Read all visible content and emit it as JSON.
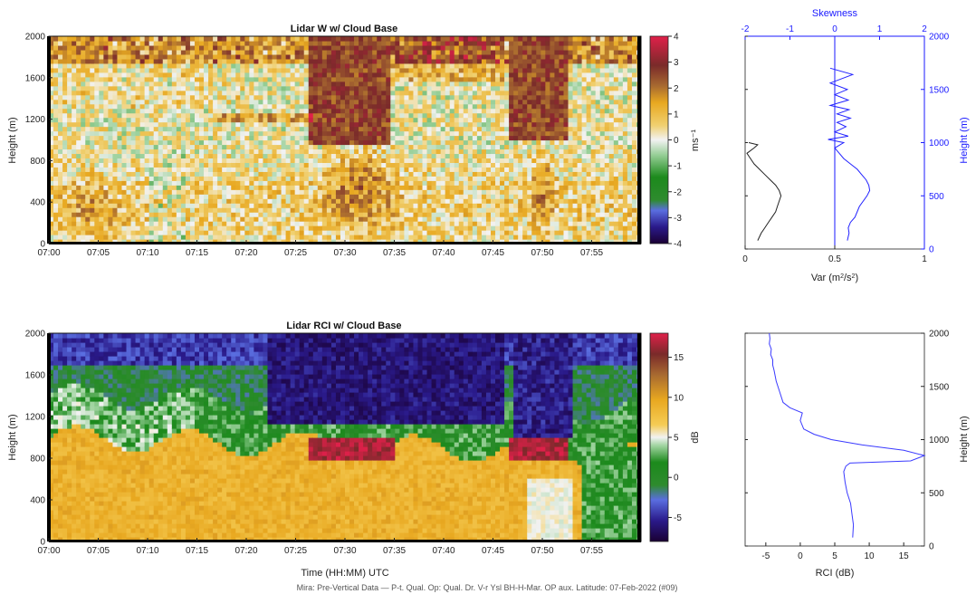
{
  "chart_data": [
    {
      "type": "heatmap",
      "title": "Lidar W w/ Cloud Base",
      "ylabel": "Height (m)",
      "xlabel": "",
      "x_ticks": [
        "07:00",
        "07:05",
        "07:10",
        "07:15",
        "07:20",
        "07:25",
        "07:30",
        "07:35",
        "07:40",
        "07:45",
        "07:50",
        "07:55"
      ],
      "xlim_minutes": [
        0,
        60
      ],
      "y_ticks": [
        0,
        400,
        800,
        1200,
        1600,
        2000
      ],
      "ylim": [
        0,
        2000
      ],
      "colorbar": {
        "label": "ms⁻¹",
        "ticks": [
          4,
          3,
          2,
          1,
          0,
          -1,
          -2,
          -3,
          -4
        ],
        "range": [
          -4,
          4
        ]
      },
      "features": {
        "high_w_columns_minutes": [
          [
            26.5,
            34.5
          ],
          [
            46.5,
            52.5
          ]
        ],
        "high_w_column_base_m": [
          950,
          980
        ],
        "updraft_cores_minutes": [
          [
            28,
            36
          ],
          [
            48.5,
            51
          ]
        ],
        "updraft_core_heights_m": [
          [
            250,
            900
          ],
          [
            300,
            850
          ]
        ]
      }
    },
    {
      "type": "line",
      "title": "",
      "xlabel": "Var (m²/s²)",
      "xlim": [
        0,
        1
      ],
      "x_ticks": [
        "0",
        "0.5",
        "1"
      ],
      "top_axis": {
        "label": "Skewness",
        "xlim": [
          -2,
          2
        ],
        "ticks": [
          "-2",
          "-1",
          "0",
          "1",
          "2"
        ]
      },
      "right_axis": {
        "label": "Height (m)",
        "ylim": [
          0,
          2000
        ],
        "ticks": [
          "0",
          "500",
          "1000",
          "1500",
          "2000"
        ]
      },
      "series": [
        {
          "axis": "Var",
          "x": [
            0.07,
            0.09,
            0.11,
            0.13,
            0.15,
            0.17,
            0.18,
            0.2,
            0.19,
            0.17,
            0.14,
            0.11,
            0.08,
            0.05,
            0.03,
            0.01,
            0.05,
            0.07,
            0.02
          ],
          "y": [
            80,
            150,
            200,
            250,
            300,
            350,
            400,
            500,
            550,
            600,
            650,
            700,
            750,
            800,
            850,
            900,
            950,
            980,
            1000
          ]
        },
        {
          "axis": "Skewness",
          "x": [
            0.28,
            0.32,
            0.3,
            0.35,
            0.45,
            0.55,
            0.72,
            0.78,
            0.76,
            0.7,
            0.6,
            0.5,
            0.35,
            0.2,
            0.1,
            0.0,
            0.2,
            -0.15,
            0.3,
            0.0,
            0.25,
            0.05,
            0.35,
            0.05,
            0.32,
            -0.1,
            0.3,
            0.0,
            0.28,
            -0.1,
            0.4,
            -0.1
          ],
          "y": [
            80,
            150,
            200,
            250,
            300,
            400,
            500,
            550,
            600,
            650,
            700,
            750,
            800,
            850,
            900,
            950,
            1000,
            1030,
            1060,
            1100,
            1150,
            1190,
            1230,
            1270,
            1310,
            1350,
            1400,
            1450,
            1500,
            1560,
            1640,
            1700
          ]
        }
      ]
    },
    {
      "type": "heatmap",
      "title": "Lidar RCI w/ Cloud Base",
      "ylabel": "Height (m)",
      "xlabel": "Time (HH:MM) UTC",
      "x_ticks": [
        "07:00",
        "07:05",
        "07:10",
        "07:15",
        "07:20",
        "07:25",
        "07:30",
        "07:35",
        "07:40",
        "07:45",
        "07:50",
        "07:55"
      ],
      "xlim_minutes": [
        0,
        60
      ],
      "y_ticks": [
        0,
        400,
        800,
        1200,
        1600,
        2000
      ],
      "ylim": [
        0,
        2000
      ],
      "colorbar": {
        "label": "dB",
        "ticks": [
          15,
          10,
          5,
          0,
          -5
        ],
        "range": [
          -8,
          18
        ]
      },
      "features": {
        "bright_layer_top_m": [
          1000,
          850
        ],
        "cloud_base_segments_minutes": [
          [
            26.5,
            35
          ],
          [
            46.5,
            52.5
          ]
        ],
        "cloud_base_height_m": 900
      }
    },
    {
      "type": "line",
      "title": "",
      "xlabel": "RCI (dB)",
      "xlim": [
        -8,
        18
      ],
      "x_ticks": [
        "-5",
        "0",
        "5",
        "10",
        "15"
      ],
      "right_axis": {
        "label": "Height (m)",
        "ylim": [
          0,
          2000
        ],
        "ticks": [
          "0",
          "500",
          "1000",
          "1500",
          "2000"
        ]
      },
      "series": [
        {
          "axis": "RCI",
          "x": [
            7.6,
            7.7,
            7.5,
            7.3,
            6.8,
            6.5,
            6.3,
            6.6,
            7.2,
            16,
            18,
            15,
            9,
            4.5,
            2,
            0.5,
            0,
            0.3,
            -1.5,
            -2.5,
            -3,
            -3.5,
            -3.8,
            -4,
            -4,
            -4.3,
            -4.2,
            -4.5,
            -4.4,
            -4.5
          ],
          "y": [
            80,
            200,
            300,
            400,
            500,
            600,
            700,
            750,
            780,
            800,
            850,
            900,
            950,
            1000,
            1050,
            1100,
            1180,
            1250,
            1300,
            1350,
            1450,
            1550,
            1650,
            1700,
            1750,
            1800,
            1850,
            1900,
            1950,
            2000
          ]
        }
      ]
    }
  ],
  "footer": "Mira: Pre-Vertical Data — P-t. Qual. Op: Qual. Dr. V-r Ysl BH-H-Mar. OP aux. Latitude: 07-Feb-2022 (#09)"
}
